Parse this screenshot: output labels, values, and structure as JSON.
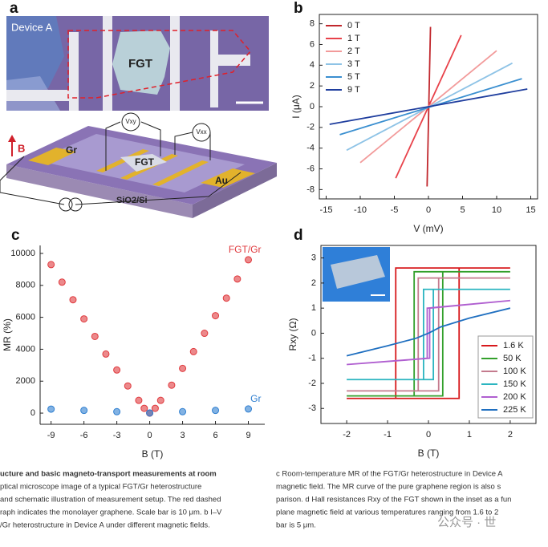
{
  "panel_a": {
    "label": "a",
    "device": "Device A",
    "flake": "FGT",
    "schematic": {
      "vxy": "Vxy",
      "vxx": "Vxx",
      "field": "B",
      "graphene": "Gr",
      "flake": "FGT",
      "electrode": "Au",
      "substrate": "SiO2/Si"
    }
  },
  "chart_data": [
    {
      "type": "line",
      "label": "b",
      "x_label": "V (mV)",
      "y_label": "I (μA)",
      "xlim": [
        -16,
        16
      ],
      "ylim": [
        -8.9,
        8.9
      ],
      "xticks": [
        -15,
        -10,
        -5,
        0,
        5,
        10,
        15
      ],
      "yticks": [
        -8,
        -6,
        -4,
        -2,
        0,
        2,
        4,
        6,
        8
      ],
      "legend": "upper left",
      "series": [
        {
          "name": "0 T",
          "color": "#c1272d",
          "x": [
            -0.2,
            0.3
          ],
          "values": [
            -7.7,
            7.7
          ]
        },
        {
          "name": "1 T",
          "color": "#e8424a",
          "x": [
            -4.8,
            4.8
          ],
          "values": [
            -6.9,
            6.9
          ]
        },
        {
          "name": "2 T",
          "color": "#f29a9a",
          "x": [
            -10,
            10
          ],
          "values": [
            -5.4,
            5.4
          ]
        },
        {
          "name": "3 T",
          "color": "#8ec3e6",
          "x": [
            -12,
            12.3
          ],
          "values": [
            -4.2,
            4.2
          ]
        },
        {
          "name": "5 T",
          "color": "#3a8fd0",
          "x": [
            -13,
            13.7
          ],
          "values": [
            -2.7,
            2.7
          ]
        },
        {
          "name": "9 T",
          "color": "#1f3e9e",
          "x": [
            -14.5,
            14.5
          ],
          "values": [
            -1.7,
            1.7
          ]
        }
      ]
    },
    {
      "type": "scatter",
      "label": "c",
      "x_label": "B (T)",
      "y_label": "MR (%)",
      "xlim": [
        -10,
        10.5
      ],
      "ylim": [
        -700,
        10500
      ],
      "xticks": [
        -9,
        -6,
        -3,
        0,
        3,
        6,
        9
      ],
      "yticks": [
        0,
        2000,
        4000,
        6000,
        8000,
        10000
      ],
      "series": [
        {
          "name": "FGT/Gr",
          "color": "#e03a3e",
          "x": [
            -9,
            -8,
            -7,
            -6,
            -5,
            -4,
            -3,
            -2,
            -1,
            -0.5,
            0,
            0.5,
            1,
            2,
            3,
            4,
            5,
            6,
            7,
            8,
            9
          ],
          "values": [
            9300,
            8200,
            7100,
            5900,
            4800,
            3700,
            2700,
            1700,
            800,
            300,
            0,
            300,
            800,
            1750,
            2800,
            3850,
            5000,
            6100,
            7200,
            8400,
            9600
          ]
        },
        {
          "name": "Gr",
          "color": "#2f7fd0",
          "x": [
            -9,
            -6,
            -3,
            0,
            3,
            6,
            9
          ],
          "values": [
            250,
            170,
            90,
            10,
            90,
            170,
            260
          ]
        }
      ]
    },
    {
      "type": "line",
      "label": "d",
      "x_label": "B (T)",
      "y_label": "Rxy (Ω)",
      "xlim": [
        -2.63,
        2.63
      ],
      "ylim": [
        -3.6,
        3.5
      ],
      "xticks": [
        -2,
        -1,
        0,
        1,
        2
      ],
      "yticks": [
        -3,
        -2,
        -1,
        0,
        1,
        2,
        3
      ],
      "legend": "right",
      "series": [
        {
          "name": "1.6 K",
          "color": "#d7191c",
          "x": [
            -2,
            0.75,
            0.75,
            2,
            -0.8,
            -0.8,
            -2
          ],
          "values": [
            -2.6,
            -2.6,
            2.6,
            2.6,
            2.6,
            -2.6,
            -2.6
          ]
        },
        {
          "name": "50 K",
          "color": "#33a02c",
          "x": [
            -2,
            0.35,
            0.35,
            2,
            -0.35,
            -0.35,
            -2
          ],
          "values": [
            -2.5,
            -2.5,
            2.45,
            2.45,
            2.45,
            -2.5,
            -2.5
          ]
        },
        {
          "name": "100 K",
          "color": "#c47b8e",
          "x": [
            -2,
            0.25,
            0.25,
            2,
            -0.25,
            -0.25,
            -2
          ],
          "values": [
            -2.3,
            -2.3,
            2.2,
            2.2,
            2.2,
            -2.3,
            -2.3
          ]
        },
        {
          "name": "150 K",
          "color": "#2bb5c0",
          "x": [
            -2,
            0.12,
            0.12,
            2,
            -0.12,
            -0.12,
            -2
          ],
          "values": [
            -1.85,
            -1.85,
            1.75,
            1.75,
            1.75,
            -1.85,
            -1.85
          ]
        },
        {
          "name": "200 K",
          "color": "#b05fd0",
          "x": [
            -2,
            0.03,
            0.03,
            2,
            -0.03,
            -0.03,
            -2
          ],
          "values": [
            -1.25,
            -1.0,
            1.0,
            1.3,
            1.0,
            -1.0,
            -1.25
          ]
        },
        {
          "name": "225 K",
          "color": "#1f6fc0",
          "x": [
            -2,
            -1,
            -0.3,
            0,
            0.3,
            1,
            2
          ],
          "values": [
            -0.9,
            -0.5,
            -0.2,
            0,
            0.25,
            0.6,
            1.0
          ]
        }
      ]
    }
  ],
  "caption": {
    "left": [
      "ucture and basic magneto-transport measurements at room",
      "ptical microscope image of a typical FGT/Gr heterostructure",
      "and schematic illustration of measurement setup. The red dashed",
      "raph indicates the monolayer graphene. Scale bar is 10 μm. b I–V",
      "/Gr heterostructure in Device A under different magnetic fields."
    ],
    "right": [
      "c Room-temperature MR of the FGT/Gr heterostructure in Device A",
      "magnetic field. The MR curve of the pure graphene region is also s",
      "parison. d Hall resistances Rxy of the FGT shown in the inset as a fun",
      "plane magnetic field at various temperatures ranging from 1.6 to 2",
      "bar is 5 μm."
    ],
    "watermark": "公众号 · 世"
  }
}
